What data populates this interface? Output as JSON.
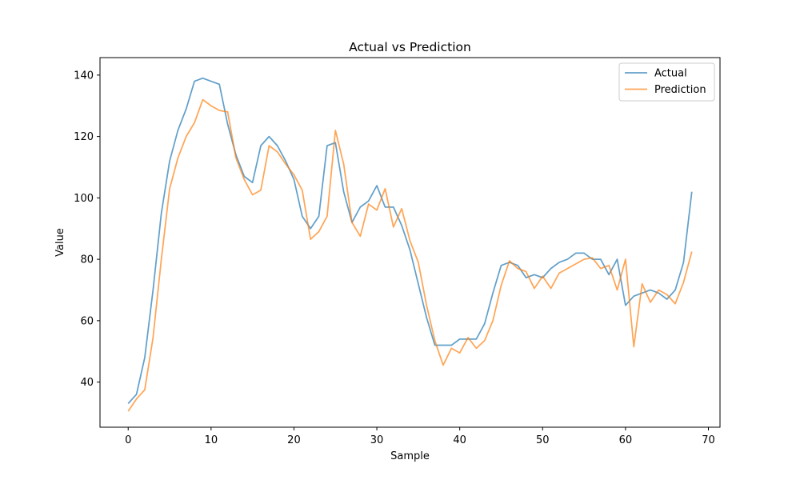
{
  "chart_data": {
    "type": "line",
    "title": "Actual vs Prediction",
    "xlabel": "Sample",
    "ylabel": "Value",
    "xlim": [
      -3.4,
      71.4
    ],
    "ylim": [
      25.3,
      145.7
    ],
    "xticks": [
      0,
      10,
      20,
      30,
      40,
      50,
      60,
      70
    ],
    "yticks": [
      40,
      60,
      80,
      100,
      120,
      140
    ],
    "grid": false,
    "legend_position": "top-right",
    "colors": {
      "Actual": "#1f77b4",
      "Prediction": "#ff7f0e"
    },
    "x": [
      0,
      1,
      2,
      3,
      4,
      5,
      6,
      7,
      8,
      9,
      10,
      11,
      12,
      13,
      14,
      15,
      16,
      17,
      18,
      19,
      20,
      21,
      22,
      23,
      24,
      25,
      26,
      27,
      28,
      29,
      30,
      31,
      32,
      33,
      34,
      35,
      36,
      37,
      38,
      39,
      40,
      41,
      42,
      43,
      44,
      45,
      46,
      47,
      48,
      49,
      50,
      51,
      52,
      53,
      54,
      55,
      56,
      57,
      58,
      59,
      60,
      61,
      62,
      63,
      64,
      65,
      66,
      67,
      68
    ],
    "series": [
      {
        "name": "Actual",
        "values": [
          33,
          36,
          48,
          70,
          95,
          112,
          122,
          129,
          138,
          139,
          138,
          137,
          124,
          114,
          107,
          105,
          117,
          120,
          117,
          112,
          106,
          94,
          90,
          94,
          117,
          118,
          102,
          92,
          97,
          99,
          104,
          97,
          97,
          91,
          83,
          72,
          61,
          52,
          52,
          52,
          54,
          54,
          54,
          59,
          69,
          78,
          79,
          78,
          74,
          75,
          74,
          77,
          79,
          80,
          82,
          82,
          80,
          80,
          75,
          80,
          65,
          68,
          69,
          70,
          69,
          67,
          70,
          79,
          102
        ]
      },
      {
        "name": "Prediction",
        "values": [
          30.5,
          34.5,
          37.5,
          54.5,
          80,
          103,
          113,
          120,
          124.5,
          132,
          130,
          128.5,
          128,
          113,
          106,
          101,
          102.5,
          117,
          115,
          111,
          107.5,
          102.5,
          86.5,
          89,
          94,
          122,
          111,
          92,
          87.5,
          98,
          96,
          103,
          90.5,
          96.5,
          86,
          79,
          65,
          53.5,
          45.5,
          51,
          49.5,
          54.5,
          51,
          53.5,
          60,
          71.5,
          79.5,
          77,
          76,
          70.5,
          74.5,
          70.5,
          75.5,
          77,
          78.5,
          80,
          80.5,
          77,
          78,
          70,
          80,
          51.5,
          72,
          66,
          70,
          68.5,
          65.5,
          72.5,
          82.5
        ]
      }
    ]
  }
}
